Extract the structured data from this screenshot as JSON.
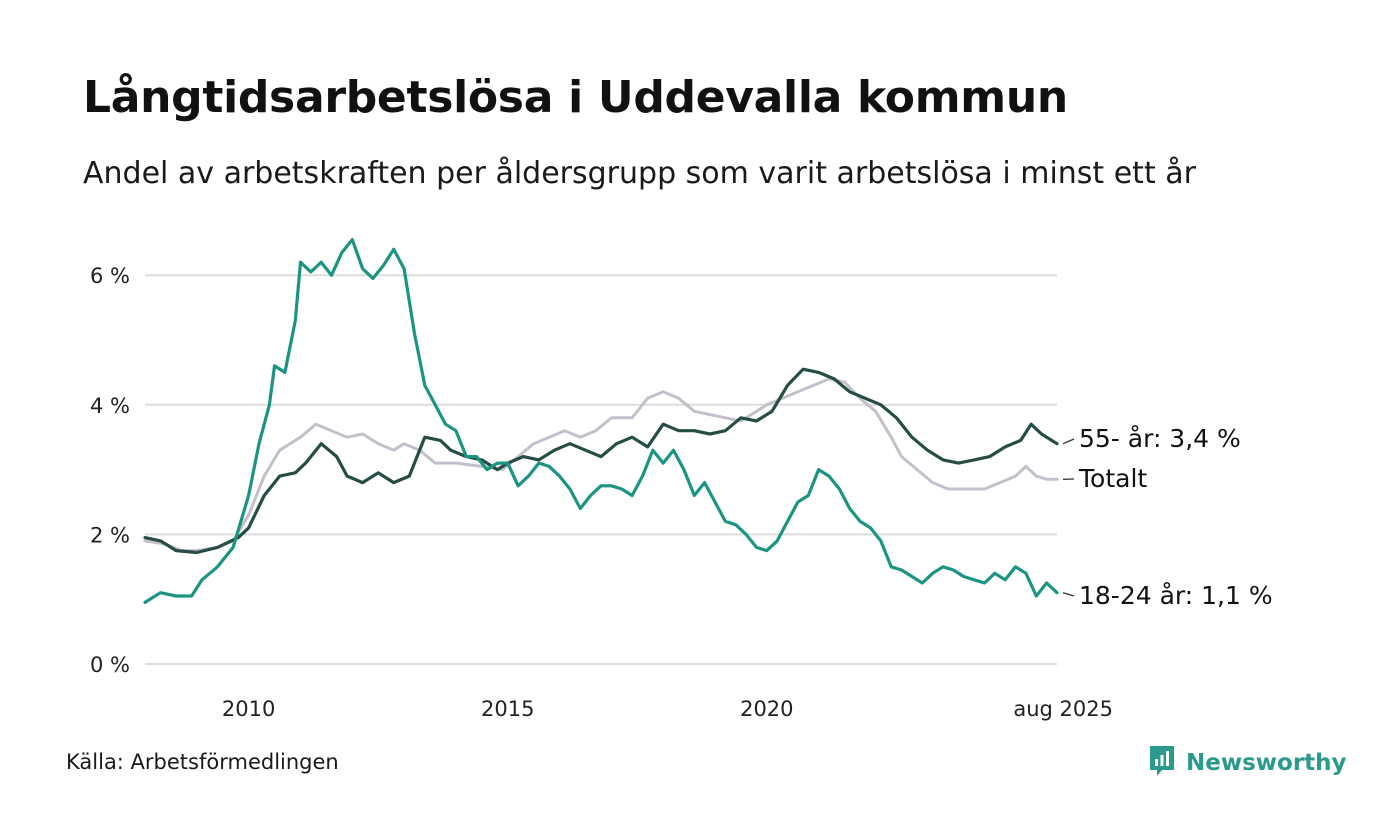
{
  "header": {
    "title": "Långtidsarbetslösa i Uddevalla kommun",
    "subtitle": "Andel av arbetskraften per åldersgrupp som varit arbetslösa i minst ett år"
  },
  "footer": {
    "source": "Källa: Arbetsförmedlingen",
    "brand": "Newsworthy",
    "brand_icon": "newsworthy-logo-icon"
  },
  "colors": {
    "age_18_24": "#1b9482",
    "age_55": "#264d45",
    "total": "#c3c0cc",
    "grid": "#dddddd",
    "brand": "#2a9a8c"
  },
  "chart_data": {
    "type": "line",
    "title": "Långtidsarbetslösa i Uddevalla kommun",
    "subtitle": "Andel av arbetskraften per åldersgrupp som varit arbetslösa i minst ett år",
    "xlabel": "",
    "ylabel": "",
    "y_ticks": [
      {
        "value": 0,
        "label": "0 %"
      },
      {
        "value": 2,
        "label": "2 %"
      },
      {
        "value": 4,
        "label": "4 %"
      },
      {
        "value": 6,
        "label": "6 %"
      }
    ],
    "x_ticks": [
      {
        "value": 2010,
        "label": "2010"
      },
      {
        "value": 2015,
        "label": "2015"
      },
      {
        "value": 2020,
        "label": "2020"
      },
      {
        "value": 2025.6,
        "label": "aug 2025"
      }
    ],
    "xlim": [
      2008.0,
      2025.6
    ],
    "ylim": [
      0,
      6.6
    ],
    "grid": true,
    "series": [
      {
        "key": "total",
        "name": "Totalt",
        "label": "Totalt",
        "color": "#c3c0cc",
        "points": [
          [
            2008.0,
            1.9
          ],
          [
            2008.4,
            1.85
          ],
          [
            2008.7,
            1.75
          ],
          [
            2009.0,
            1.75
          ],
          [
            2009.4,
            1.8
          ],
          [
            2009.7,
            1.9
          ],
          [
            2010.0,
            2.3
          ],
          [
            2010.3,
            2.9
          ],
          [
            2010.6,
            3.3
          ],
          [
            2010.8,
            3.4
          ],
          [
            2011.0,
            3.5
          ],
          [
            2011.3,
            3.7
          ],
          [
            2011.6,
            3.6
          ],
          [
            2011.9,
            3.5
          ],
          [
            2012.2,
            3.55
          ],
          [
            2012.5,
            3.4
          ],
          [
            2012.8,
            3.3
          ],
          [
            2013.0,
            3.4
          ],
          [
            2013.3,
            3.3
          ],
          [
            2013.6,
            3.1
          ],
          [
            2014.0,
            3.1
          ],
          [
            2014.5,
            3.05
          ],
          [
            2014.9,
            3.0
          ],
          [
            2015.2,
            3.2
          ],
          [
            2015.5,
            3.4
          ],
          [
            2015.8,
            3.5
          ],
          [
            2016.1,
            3.6
          ],
          [
            2016.4,
            3.5
          ],
          [
            2016.7,
            3.6
          ],
          [
            2017.0,
            3.8
          ],
          [
            2017.4,
            3.8
          ],
          [
            2017.7,
            4.1
          ],
          [
            2018.0,
            4.2
          ],
          [
            2018.3,
            4.1
          ],
          [
            2018.6,
            3.9
          ],
          [
            2018.9,
            3.85
          ],
          [
            2019.2,
            3.8
          ],
          [
            2019.5,
            3.75
          ],
          [
            2019.8,
            3.9
          ],
          [
            2020.0,
            4.0
          ],
          [
            2020.3,
            4.1
          ],
          [
            2020.6,
            4.2
          ],
          [
            2020.9,
            4.3
          ],
          [
            2021.2,
            4.4
          ],
          [
            2021.5,
            4.35
          ],
          [
            2021.8,
            4.1
          ],
          [
            2022.1,
            3.9
          ],
          [
            2022.4,
            3.5
          ],
          [
            2022.6,
            3.2
          ],
          [
            2022.9,
            3.0
          ],
          [
            2023.2,
            2.8
          ],
          [
            2023.5,
            2.7
          ],
          [
            2023.9,
            2.7
          ],
          [
            2024.2,
            2.7
          ],
          [
            2024.5,
            2.8
          ],
          [
            2024.8,
            2.9
          ],
          [
            2025.0,
            3.05
          ],
          [
            2025.2,
            2.9
          ],
          [
            2025.4,
            2.85
          ],
          [
            2025.6,
            2.85
          ]
        ]
      },
      {
        "key": "age_55",
        "name": "55- år",
        "label": "55- år: 3,4 %",
        "color": "#264d45",
        "points": [
          [
            2008.0,
            1.95
          ],
          [
            2008.3,
            1.9
          ],
          [
            2008.6,
            1.75
          ],
          [
            2009.0,
            1.72
          ],
          [
            2009.4,
            1.8
          ],
          [
            2009.8,
            1.95
          ],
          [
            2010.0,
            2.1
          ],
          [
            2010.3,
            2.6
          ],
          [
            2010.6,
            2.9
          ],
          [
            2010.9,
            2.95
          ],
          [
            2011.1,
            3.1
          ],
          [
            2011.4,
            3.4
          ],
          [
            2011.7,
            3.2
          ],
          [
            2011.9,
            2.9
          ],
          [
            2012.2,
            2.8
          ],
          [
            2012.5,
            2.95
          ],
          [
            2012.8,
            2.8
          ],
          [
            2013.1,
            2.9
          ],
          [
            2013.4,
            3.5
          ],
          [
            2013.7,
            3.45
          ],
          [
            2013.9,
            3.3
          ],
          [
            2014.2,
            3.2
          ],
          [
            2014.5,
            3.15
          ],
          [
            2014.8,
            3.0
          ],
          [
            2015.0,
            3.1
          ],
          [
            2015.3,
            3.2
          ],
          [
            2015.6,
            3.15
          ],
          [
            2015.9,
            3.3
          ],
          [
            2016.2,
            3.4
          ],
          [
            2016.5,
            3.3
          ],
          [
            2016.8,
            3.2
          ],
          [
            2017.1,
            3.4
          ],
          [
            2017.4,
            3.5
          ],
          [
            2017.7,
            3.35
          ],
          [
            2018.0,
            3.7
          ],
          [
            2018.3,
            3.6
          ],
          [
            2018.6,
            3.6
          ],
          [
            2018.9,
            3.55
          ],
          [
            2019.2,
            3.6
          ],
          [
            2019.5,
            3.8
          ],
          [
            2019.8,
            3.75
          ],
          [
            2020.1,
            3.9
          ],
          [
            2020.4,
            4.3
          ],
          [
            2020.7,
            4.55
          ],
          [
            2021.0,
            4.5
          ],
          [
            2021.3,
            4.4
          ],
          [
            2021.6,
            4.2
          ],
          [
            2021.9,
            4.1
          ],
          [
            2022.2,
            4.0
          ],
          [
            2022.5,
            3.8
          ],
          [
            2022.8,
            3.5
          ],
          [
            2023.1,
            3.3
          ],
          [
            2023.4,
            3.15
          ],
          [
            2023.7,
            3.1
          ],
          [
            2024.0,
            3.15
          ],
          [
            2024.3,
            3.2
          ],
          [
            2024.6,
            3.35
          ],
          [
            2024.9,
            3.45
          ],
          [
            2025.1,
            3.7
          ],
          [
            2025.3,
            3.55
          ],
          [
            2025.6,
            3.4
          ]
        ]
      },
      {
        "key": "age_18_24",
        "name": "18-24 år",
        "label": "18-24 år: 1,1 %",
        "color": "#1b9482",
        "points": [
          [
            2008.0,
            0.95
          ],
          [
            2008.3,
            1.1
          ],
          [
            2008.6,
            1.05
          ],
          [
            2008.9,
            1.05
          ],
          [
            2009.1,
            1.3
          ],
          [
            2009.4,
            1.5
          ],
          [
            2009.7,
            1.8
          ],
          [
            2010.0,
            2.6
          ],
          [
            2010.2,
            3.4
          ],
          [
            2010.4,
            4.0
          ],
          [
            2010.5,
            4.6
          ],
          [
            2010.7,
            4.5
          ],
          [
            2010.9,
            5.3
          ],
          [
            2011.0,
            6.2
          ],
          [
            2011.2,
            6.05
          ],
          [
            2011.4,
            6.2
          ],
          [
            2011.6,
            6.0
          ],
          [
            2011.8,
            6.35
          ],
          [
            2012.0,
            6.55
          ],
          [
            2012.2,
            6.1
          ],
          [
            2012.4,
            5.95
          ],
          [
            2012.6,
            6.15
          ],
          [
            2012.8,
            6.4
          ],
          [
            2013.0,
            6.1
          ],
          [
            2013.2,
            5.1
          ],
          [
            2013.4,
            4.3
          ],
          [
            2013.6,
            4.0
          ],
          [
            2013.8,
            3.7
          ],
          [
            2014.0,
            3.6
          ],
          [
            2014.2,
            3.2
          ],
          [
            2014.4,
            3.2
          ],
          [
            2014.6,
            3.0
          ],
          [
            2014.8,
            3.1
          ],
          [
            2015.0,
            3.1
          ],
          [
            2015.2,
            2.75
          ],
          [
            2015.4,
            2.9
          ],
          [
            2015.6,
            3.1
          ],
          [
            2015.8,
            3.05
          ],
          [
            2016.0,
            2.9
          ],
          [
            2016.2,
            2.7
          ],
          [
            2016.4,
            2.4
          ],
          [
            2016.6,
            2.6
          ],
          [
            2016.8,
            2.75
          ],
          [
            2017.0,
            2.75
          ],
          [
            2017.2,
            2.7
          ],
          [
            2017.4,
            2.6
          ],
          [
            2017.6,
            2.9
          ],
          [
            2017.8,
            3.3
          ],
          [
            2018.0,
            3.1
          ],
          [
            2018.2,
            3.3
          ],
          [
            2018.4,
            3.0
          ],
          [
            2018.6,
            2.6
          ],
          [
            2018.8,
            2.8
          ],
          [
            2019.0,
            2.5
          ],
          [
            2019.2,
            2.2
          ],
          [
            2019.4,
            2.15
          ],
          [
            2019.6,
            2.0
          ],
          [
            2019.8,
            1.8
          ],
          [
            2020.0,
            1.75
          ],
          [
            2020.2,
            1.9
          ],
          [
            2020.4,
            2.2
          ],
          [
            2020.6,
            2.5
          ],
          [
            2020.8,
            2.6
          ],
          [
            2021.0,
            3.0
          ],
          [
            2021.2,
            2.9
          ],
          [
            2021.4,
            2.7
          ],
          [
            2021.6,
            2.4
          ],
          [
            2021.8,
            2.2
          ],
          [
            2022.0,
            2.1
          ],
          [
            2022.2,
            1.9
          ],
          [
            2022.4,
            1.5
          ],
          [
            2022.6,
            1.45
          ],
          [
            2022.8,
            1.35
          ],
          [
            2023.0,
            1.25
          ],
          [
            2023.2,
            1.4
          ],
          [
            2023.4,
            1.5
          ],
          [
            2023.6,
            1.45
          ],
          [
            2023.8,
            1.35
          ],
          [
            2024.0,
            1.3
          ],
          [
            2024.2,
            1.25
          ],
          [
            2024.4,
            1.4
          ],
          [
            2024.6,
            1.3
          ],
          [
            2024.8,
            1.5
          ],
          [
            2025.0,
            1.4
          ],
          [
            2025.2,
            1.05
          ],
          [
            2025.4,
            1.25
          ],
          [
            2025.6,
            1.1
          ]
        ]
      }
    ]
  }
}
